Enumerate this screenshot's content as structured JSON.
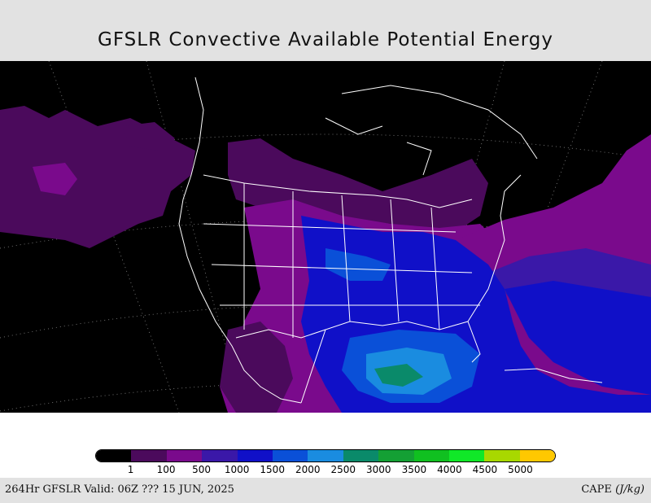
{
  "title": "GFSLR Convective Available Potential Energy",
  "legend": {
    "colors": [
      "#000000",
      "#4b0a5c",
      "#7a0a8c",
      "#3a18a8",
      "#1010c8",
      "#0a50d8",
      "#1a8ce0",
      "#0a8a6a",
      "#14a034",
      "#10c020",
      "#10e828",
      "#a8d800",
      "#ffc800"
    ],
    "ticks": [
      "1",
      "100",
      "500",
      "1000",
      "1500",
      "2000",
      "2500",
      "3000",
      "3500",
      "4000",
      "4500",
      "5000"
    ]
  },
  "footer": {
    "valid": "264Hr GFSLR Valid: 06Z ??? 15 JUN, 2025",
    "field": "CAPE",
    "unit": "(J/kg)"
  }
}
